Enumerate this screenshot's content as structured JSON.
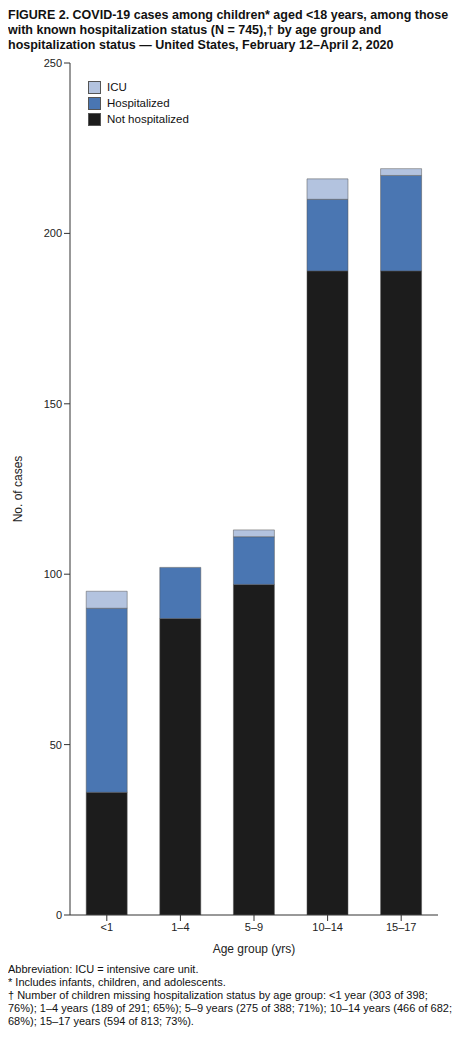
{
  "chart_data": {
    "type": "bar",
    "stacked": true,
    "title": "FIGURE 2. COVID-19 cases among children* aged <18 years, among those with known hospitalization status (N = 745),† by age group and hospitalization status — United States, February 12–April 2, 2020",
    "x_label": "Age group (yrs)",
    "y_label": "No. of cases",
    "categories": [
      "<1",
      "1–4",
      "5–9",
      "10–14",
      "15–17"
    ],
    "series": [
      {
        "name": "Not hospitalized",
        "color": "#1c1c1c",
        "values": [
          36,
          87,
          97,
          189,
          189
        ]
      },
      {
        "name": "Hospitalized",
        "color": "#4a76b2",
        "values": [
          54,
          15,
          14,
          21,
          28
        ]
      },
      {
        "name": "ICU",
        "color": "#b3c3df",
        "values": [
          5,
          0,
          2,
          6,
          2
        ]
      }
    ],
    "ylim": [
      0,
      250
    ],
    "yticks": [
      0,
      50,
      100,
      150,
      200,
      250
    ],
    "legend": "upper left",
    "notes": [
      "Abbreviation: ICU = intensive care unit.",
      "* Includes infants, children, and adolescents.",
      "† Number of children missing hospitalization status by age group: <1 year (303 of 398; 76%); 1–4 years (189 of 291; 65%); 5–9 years (275 of 388; 71%); 10–14 years (466 of 682; 68%); 15–17 years (594 of 813; 73%)."
    ]
  }
}
